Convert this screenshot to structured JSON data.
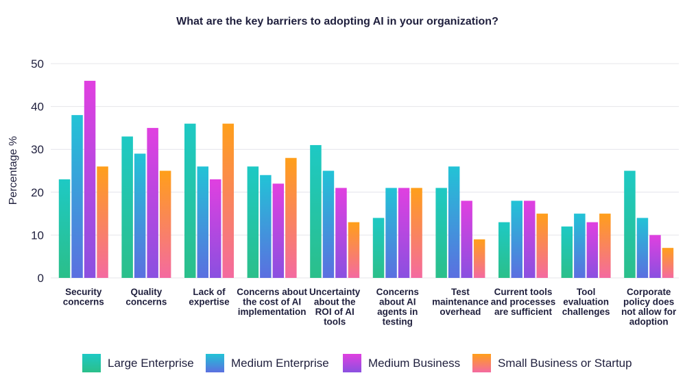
{
  "chart_data": {
    "type": "bar",
    "title": "What are the key barriers to adopting AI in your organization?",
    "ylabel": "Percentage %",
    "xlabel": "",
    "ylim": [
      0,
      50
    ],
    "yticks": [
      0,
      10,
      20,
      30,
      40,
      50
    ],
    "grid": true,
    "legend_position": "bottom",
    "categories": [
      [
        "Security",
        "concerns"
      ],
      [
        "Quality",
        "concerns"
      ],
      [
        "Lack of",
        "expertise"
      ],
      [
        "Concerns about",
        "the cost of AI",
        "implementation"
      ],
      [
        "Uncertainty",
        "about the",
        "ROI of AI",
        "tools"
      ],
      [
        "Concerns",
        "about AI",
        "agents in",
        "testing"
      ],
      [
        "Test",
        "maintenance",
        "overhead"
      ],
      [
        "Current tools",
        "and processes",
        "are sufficient"
      ],
      [
        "Tool",
        "evaluation",
        "challenges"
      ],
      [
        "Corporate",
        "policy does",
        "not allow for",
        "adoption"
      ]
    ],
    "series": [
      {
        "name": "Large Enterprise",
        "color_top": "#1ec9c4",
        "color_bottom": "#2bbf8a",
        "values": [
          23,
          33,
          36,
          26,
          31,
          14,
          21,
          13,
          12,
          25
        ]
      },
      {
        "name": "Medium Enterprise",
        "color_top": "#22c3d6",
        "color_bottom": "#5b6fe0",
        "values": [
          38,
          29,
          26,
          24,
          25,
          21,
          26,
          18,
          15,
          14
        ]
      },
      {
        "name": "Medium Business",
        "color_top": "#e040e0",
        "color_bottom": "#8a50e0",
        "values": [
          46,
          35,
          23,
          22,
          21,
          21,
          18,
          18,
          13,
          10
        ]
      },
      {
        "name": "Small Business or Startup",
        "color_top": "#ff9f1a",
        "color_bottom": "#f46aa0",
        "values": [
          26,
          25,
          36,
          28,
          13,
          21,
          9,
          15,
          15,
          7
        ]
      }
    ]
  }
}
